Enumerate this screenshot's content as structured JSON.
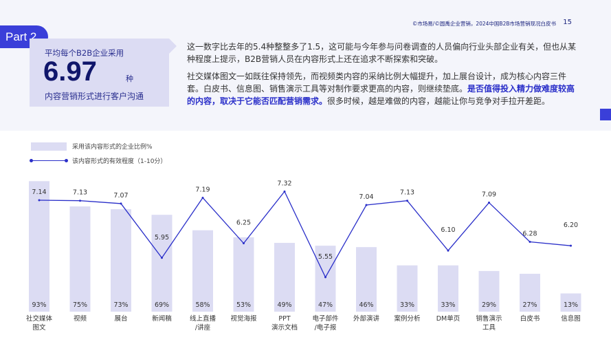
{
  "header": {
    "credit": "©市场易/©圆禹企业营销，2024中国B2B市场营销现况白皮书",
    "page": "15"
  },
  "section": "Part 2",
  "callout": {
    "line1": "平均每个B2B企业采用",
    "value": "6.97",
    "unit": "种",
    "line3": "内容营销形式进行客户沟通"
  },
  "para1": "这一数字比去年的5.4种整整多了1.5，这可能与今年参与问卷调查的人员偏向行业头部企业有关，但也从某种程度上提示，B2B营销人员在内容形式上还在追求不断探索和突破。",
  "para2a": "社交媒体图文一如既往保持领先，而视频类内容的采纳比例大幅提升，加上展台设计，成为核心内容三件套。白皮书、信息图、销售演示工具等对制作要求更高的内容，则继续垫底。",
  "para2b": "是否值得投入精力做难度较高的内容，取决于它能否匹配营销需求。",
  "para2c": "很多时候，越是难做的内容，越能让你与竞争对手拉开差距。",
  "colors": {
    "bar": "#dcdcf3",
    "line": "#2a2fc9",
    "accent": "#3a3fd9"
  },
  "chart_data": {
    "type": "bar+line",
    "legend": [
      "采用该内容形式的企业比例%",
      "该内容形式的有效程度（1-10分）"
    ],
    "categories": [
      "社交媒体\n图文",
      "视频",
      "展台",
      "新闻稿",
      "线上直播\n/讲座",
      "视觉海报",
      "PPT\n演示文档",
      "电子部件\n/电子报",
      "外部演讲",
      "案例分析",
      "DM单页",
      "销售演示\n工具",
      "白皮书",
      "信息图"
    ],
    "series": [
      {
        "name": "采用该内容形式的企业比例%",
        "type": "bar",
        "values": [
          93,
          75,
          73,
          69,
          58,
          53,
          49,
          47,
          46,
          33,
          33,
          29,
          27,
          13
        ],
        "labels": [
          "93%",
          "75%",
          "73%",
          "69%",
          "58%",
          "53%",
          "49%",
          "47%",
          "46%",
          "33%",
          "33%",
          "29%",
          "27%",
          "13%"
        ]
      },
      {
        "name": "该内容形式的有效程度（1-10分）",
        "type": "line",
        "values": [
          7.14,
          7.13,
          7.07,
          5.95,
          7.19,
          6.25,
          7.32,
          5.55,
          7.04,
          7.13,
          6.1,
          7.09,
          6.28,
          6.2
        ],
        "labels": [
          "7.14",
          "7.13",
          "7.07",
          "5.95",
          "7.19",
          "6.25",
          "7.32",
          "5.55",
          "7.04",
          "7.13",
          "6.10",
          "7.09",
          "6.28",
          "6.20"
        ]
      }
    ]
  }
}
